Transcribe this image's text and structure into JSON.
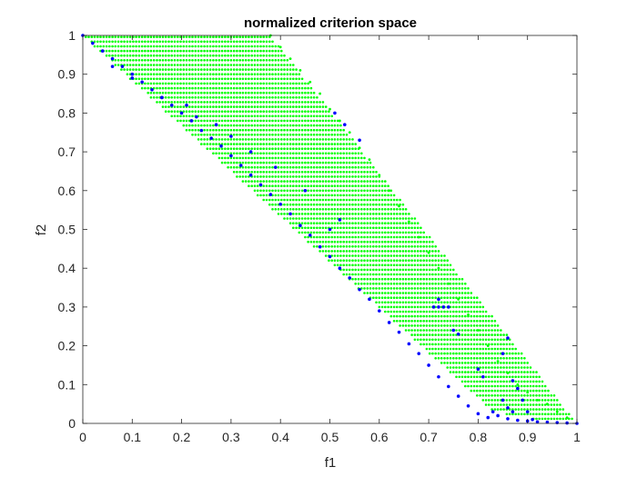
{
  "chart_data": {
    "type": "scatter",
    "title": "normalized criterion space",
    "xlabel": "f1",
    "ylabel": "f2",
    "xlim": [
      0,
      1
    ],
    "ylim": [
      0,
      1
    ],
    "xticks": [
      "0",
      "0.1",
      "0.2",
      "0.3",
      "0.4",
      "0.5",
      "0.6",
      "0.7",
      "0.8",
      "0.9",
      "1"
    ],
    "yticks": [
      "0",
      "0.1",
      "0.2",
      "0.3",
      "0.4",
      "0.5",
      "0.6",
      "0.7",
      "0.8",
      "0.9",
      "1"
    ],
    "grid": false,
    "legend": "none",
    "series": [
      {
        "color": "#00ff00",
        "marker": "dot",
        "description_region": [
          [
            0.38,
            1.0
          ],
          [
            0.0,
            1.0
          ],
          [
            0.83,
            0.03
          ],
          [
            0.92,
            0.01
          ],
          [
            1.0,
            0.0
          ]
        ],
        "points": [
          [
            0.38,
            1.0
          ],
          [
            0.4,
            0.97
          ],
          [
            0.42,
            0.94
          ],
          [
            0.44,
            0.91
          ],
          [
            0.46,
            0.88
          ],
          [
            0.48,
            0.85
          ],
          [
            0.5,
            0.81
          ],
          [
            0.52,
            0.78
          ],
          [
            0.54,
            0.75
          ],
          [
            0.56,
            0.71
          ],
          [
            0.58,
            0.68
          ],
          [
            0.6,
            0.64
          ],
          [
            0.62,
            0.6
          ],
          [
            0.64,
            0.56
          ],
          [
            0.66,
            0.52
          ],
          [
            0.68,
            0.48
          ],
          [
            0.7,
            0.44
          ],
          [
            0.72,
            0.4
          ],
          [
            0.74,
            0.36
          ],
          [
            0.76,
            0.32
          ],
          [
            0.78,
            0.28
          ],
          [
            0.8,
            0.24
          ],
          [
            0.82,
            0.2
          ],
          [
            0.84,
            0.16
          ],
          [
            0.86,
            0.13
          ],
          [
            0.88,
            0.1
          ],
          [
            0.9,
            0.08
          ],
          [
            0.92,
            0.06
          ],
          [
            0.94,
            0.05
          ],
          [
            0.96,
            0.03
          ],
          [
            0.98,
            0.015
          ],
          [
            1.0,
            0.0
          ]
        ]
      },
      {
        "color": "#0000ff",
        "marker": "dot",
        "points": [
          [
            0.0,
            1.0
          ],
          [
            0.02,
            0.98
          ],
          [
            0.04,
            0.96
          ],
          [
            0.06,
            0.94
          ],
          [
            0.08,
            0.92
          ],
          [
            0.1,
            0.9
          ],
          [
            0.12,
            0.88
          ],
          [
            0.14,
            0.86
          ],
          [
            0.16,
            0.84
          ],
          [
            0.18,
            0.82
          ],
          [
            0.2,
            0.8
          ],
          [
            0.22,
            0.78
          ],
          [
            0.24,
            0.755
          ],
          [
            0.26,
            0.735
          ],
          [
            0.28,
            0.715
          ],
          [
            0.3,
            0.69
          ],
          [
            0.32,
            0.665
          ],
          [
            0.34,
            0.64
          ],
          [
            0.36,
            0.615
          ],
          [
            0.38,
            0.59
          ],
          [
            0.4,
            0.565
          ],
          [
            0.42,
            0.54
          ],
          [
            0.44,
            0.51
          ],
          [
            0.46,
            0.485
          ],
          [
            0.48,
            0.455
          ],
          [
            0.5,
            0.43
          ],
          [
            0.52,
            0.4
          ],
          [
            0.54,
            0.375
          ],
          [
            0.56,
            0.345
          ],
          [
            0.58,
            0.32
          ],
          [
            0.6,
            0.29
          ],
          [
            0.62,
            0.26
          ],
          [
            0.64,
            0.235
          ],
          [
            0.66,
            0.205
          ],
          [
            0.68,
            0.18
          ],
          [
            0.7,
            0.15
          ],
          [
            0.72,
            0.12
          ],
          [
            0.74,
            0.095
          ],
          [
            0.76,
            0.07
          ],
          [
            0.78,
            0.045
          ],
          [
            0.8,
            0.025
          ],
          [
            0.82,
            0.015
          ],
          [
            0.83,
            0.03
          ],
          [
            0.84,
            0.02
          ],
          [
            0.86,
            0.012
          ],
          [
            0.88,
            0.008
          ],
          [
            0.9,
            0.006
          ],
          [
            0.92,
            0.004
          ],
          [
            0.94,
            0.003
          ],
          [
            0.96,
            0.002
          ],
          [
            0.98,
            0.001
          ],
          [
            1.0,
            0.0
          ],
          [
            0.06,
            0.92
          ],
          [
            0.1,
            0.89
          ],
          [
            0.16,
            0.84
          ],
          [
            0.21,
            0.82
          ],
          [
            0.23,
            0.79
          ],
          [
            0.27,
            0.77
          ],
          [
            0.3,
            0.74
          ],
          [
            0.34,
            0.7
          ],
          [
            0.39,
            0.66
          ],
          [
            0.45,
            0.6
          ],
          [
            0.52,
            0.525
          ],
          [
            0.5,
            0.5
          ],
          [
            0.51,
            0.8
          ],
          [
            0.53,
            0.77
          ],
          [
            0.56,
            0.73
          ],
          [
            0.71,
            0.3
          ],
          [
            0.72,
            0.3
          ],
          [
            0.73,
            0.3
          ],
          [
            0.74,
            0.3
          ],
          [
            0.72,
            0.32
          ],
          [
            0.75,
            0.24
          ],
          [
            0.76,
            0.23
          ],
          [
            0.8,
            0.14
          ],
          [
            0.81,
            0.12
          ],
          [
            0.85,
            0.18
          ],
          [
            0.86,
            0.22
          ],
          [
            0.87,
            0.11
          ],
          [
            0.88,
            0.09
          ],
          [
            0.89,
            0.06
          ],
          [
            0.9,
            0.03
          ],
          [
            0.91,
            0.01
          ],
          [
            0.85,
            0.06
          ],
          [
            0.86,
            0.04
          ],
          [
            0.87,
            0.03
          ]
        ]
      }
    ]
  }
}
